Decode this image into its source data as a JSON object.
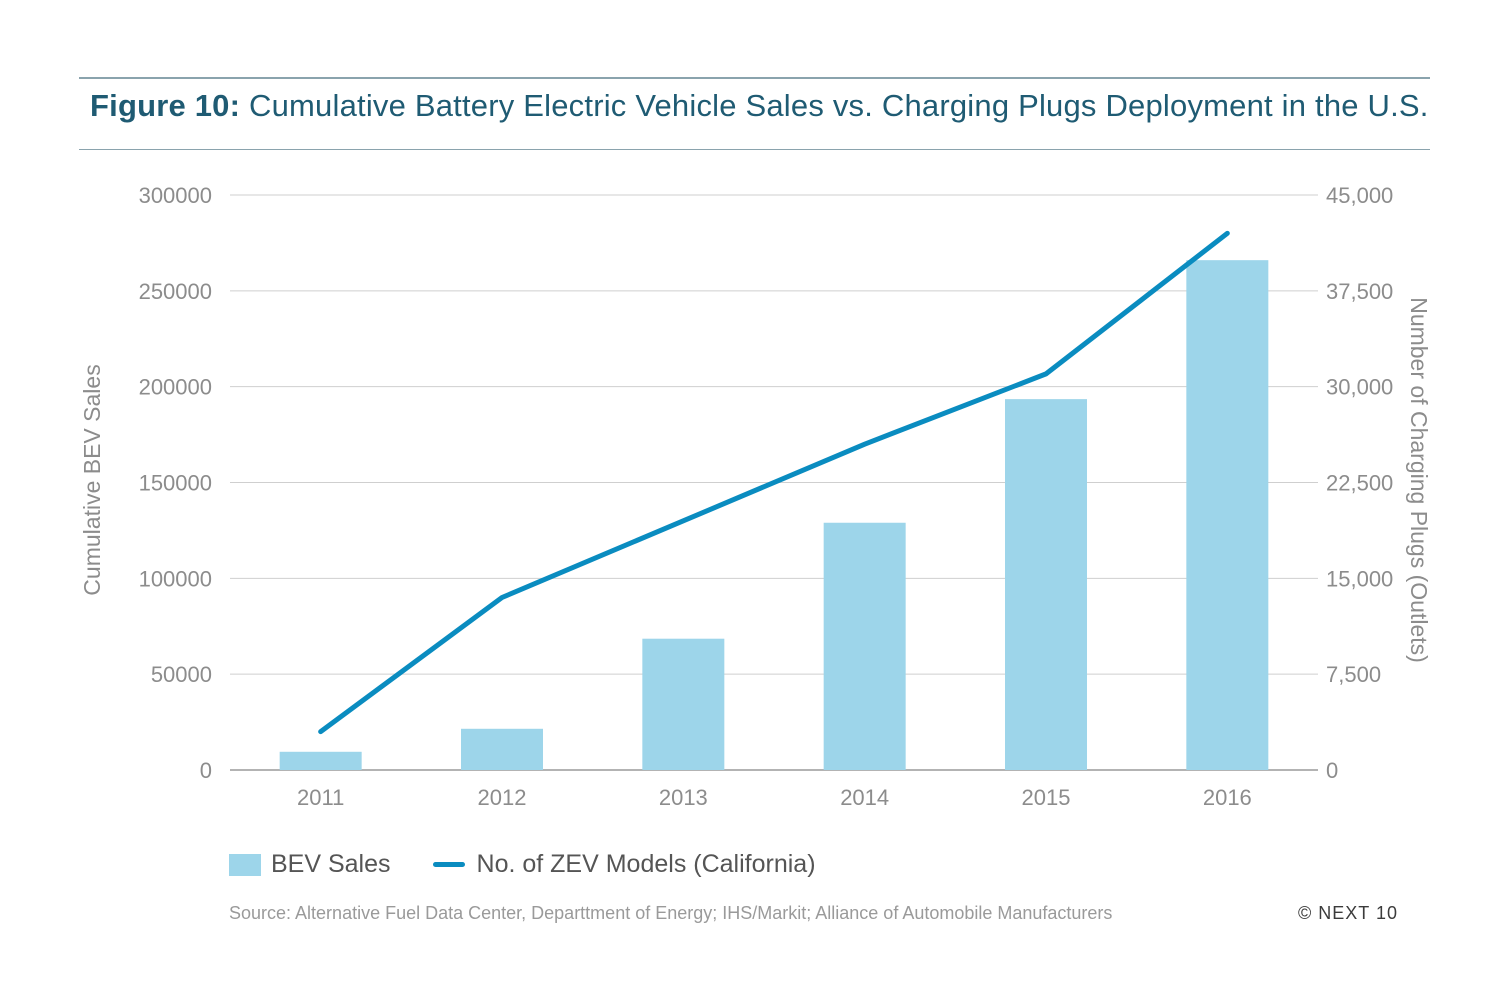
{
  "figure": {
    "label": "Figure 10:",
    "title": "Cumulative Battery Electric Vehicle Sales vs. Charging Plugs Deployment in the U.S."
  },
  "chart_data": {
    "type": "bar",
    "categories": [
      "2011",
      "2012",
      "2013",
      "2014",
      "2015",
      "2016"
    ],
    "series": [
      {
        "name": "BEV Sales",
        "type": "bar",
        "axis": "left",
        "values": [
          9500,
          21500,
          68500,
          129000,
          193500,
          266000
        ]
      },
      {
        "name": "No. of ZEV Models (California)",
        "type": "line",
        "axis": "right",
        "values": [
          3000,
          13500,
          19500,
          25500,
          31000,
          42000
        ]
      }
    ],
    "ylabel": "Cumulative BEV Sales",
    "y2label": "Number of Charging Plugs (Outlets)",
    "ylim": [
      0,
      300000
    ],
    "y2lim": [
      0,
      45000
    ],
    "yticks": [
      "0",
      "50000",
      "100000",
      "150000",
      "200000",
      "250000",
      "300000"
    ],
    "y2ticks": [
      "0",
      "7,500",
      "15,000",
      "22,500",
      "30,000",
      "37,500",
      "45,000"
    ],
    "grid": true,
    "legend_position": "bottom-left",
    "colors": {
      "bar": "#9dd5ea",
      "line": "#0a8cc0"
    }
  },
  "legend": {
    "bar_label": "BEV Sales",
    "line_label": "No. of ZEV Models (California)"
  },
  "source": "Source: Alternative Fuel Data Center, Departtment of Energy; IHS/Markit; Alliance of Automobile Manufacturers",
  "copyright": "© NEXT 10"
}
